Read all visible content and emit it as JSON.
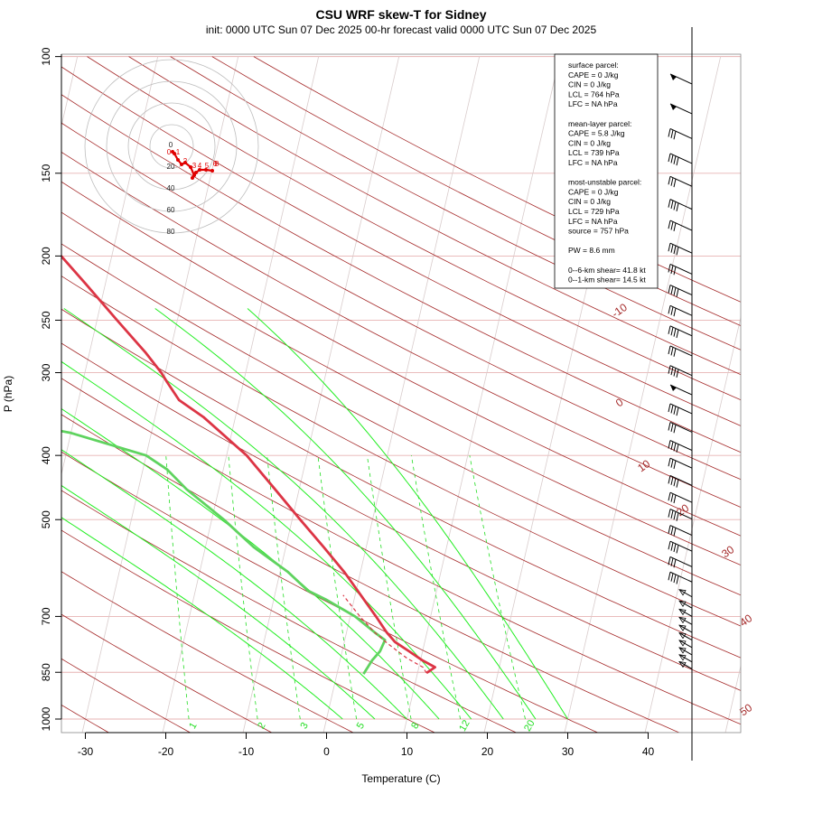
{
  "title": "CSU WRF skew-T for Sidney",
  "subtitle": "init: 0000 UTC Sun 07 Dec 2025    00-hr forecast valid 0000 UTC Sun 07 Dec 2025",
  "chart_data": {
    "type": "line",
    "chart_kind": "skew-T log-P",
    "xlabel": "Temperature (C)",
    "ylabel": "P (hPa)",
    "x_ticks": [
      -30,
      -20,
      -10,
      0,
      10,
      20,
      30,
      40
    ],
    "y_ticks": [
      100,
      150,
      200,
      250,
      300,
      400,
      500,
      700,
      850,
      1000
    ],
    "xlim": [
      -33,
      45
    ],
    "ylim": [
      1050,
      100
    ],
    "y_scale": "log",
    "isotherm_labels": [
      "-10",
      "0",
      "10",
      "20",
      "30",
      "40",
      "50"
    ],
    "mixing_ratio_labels": [
      "1",
      "2",
      "3",
      "5",
      "8",
      "12",
      "20"
    ],
    "series": [
      {
        "name": "Temperature",
        "color": "#dc3545",
        "points": [
          [
            852,
            11.1
          ],
          [
            835,
            12.0
          ],
          [
            815,
            10.2
          ],
          [
            790,
            8.3
          ],
          [
            765,
            6.3
          ],
          [
            740,
            5.0
          ],
          [
            700,
            3.2
          ],
          [
            650,
            0.7
          ],
          [
            600,
            -2.0
          ],
          [
            550,
            -5.3
          ],
          [
            500,
            -9.0
          ],
          [
            450,
            -13.0
          ],
          [
            400,
            -17.5
          ],
          [
            350,
            -24.0
          ],
          [
            330,
            -27.5
          ],
          [
            310,
            -29.5
          ],
          [
            300,
            -30.5
          ],
          [
            280,
            -33.0
          ],
          [
            250,
            -37.5
          ],
          [
            220,
            -42.5
          ],
          [
            200,
            -46.3
          ],
          [
            180,
            -50.5
          ],
          [
            150,
            -57.0
          ],
          [
            130,
            -59.5
          ],
          [
            110,
            -61.8
          ]
        ]
      },
      {
        "name": "Dewpoint",
        "color": "#5fd35f",
        "points": [
          [
            855,
            3.3
          ],
          [
            815,
            4.0
          ],
          [
            790,
            4.7
          ],
          [
            760,
            5.0
          ],
          [
            740,
            3.5
          ],
          [
            700,
            0.6
          ],
          [
            660,
            -3.5
          ],
          [
            640,
            -6.0
          ],
          [
            600,
            -9.0
          ],
          [
            550,
            -14.0
          ],
          [
            500,
            -18.5
          ],
          [
            450,
            -24.0
          ],
          [
            420,
            -27.0
          ],
          [
            400,
            -30.0
          ],
          [
            370,
            -40.0
          ],
          [
            355,
            -48.0
          ],
          [
            330,
            -54.0
          ],
          [
            300,
            -61.0
          ],
          [
            280,
            -65.0
          ],
          [
            250,
            -70.5
          ],
          [
            220,
            -73.0
          ],
          [
            200,
            -74.5
          ],
          [
            180,
            -77.0
          ]
        ]
      },
      {
        "name": "Parcel",
        "color": "#dc3545",
        "style": "dashed",
        "points": [
          [
            852,
            11.1
          ],
          [
            835,
            10.5
          ],
          [
            810,
            8.3
          ],
          [
            790,
            6.9
          ],
          [
            770,
            5.5
          ],
          [
            764,
            5.1
          ],
          [
            740,
            3.5
          ],
          [
            700,
            1.2
          ],
          [
            650,
            -1.5
          ]
        ]
      }
    ],
    "wind_barbs": {
      "pressures": [
        110,
        122,
        133,
        145,
        157,
        170,
        183,
        198,
        213,
        229,
        246,
        264,
        283,
        303,
        324,
        346,
        369,
        393,
        418,
        444,
        471,
        499,
        528,
        558,
        589,
        621,
        654,
        680,
        700,
        720,
        740,
        760,
        780,
        800,
        820,
        840
      ]
    },
    "hodograph": {
      "rings": [
        "0",
        "20",
        "40",
        "60",
        "80"
      ],
      "height_labels": [
        "0",
        "1",
        "2",
        "3",
        "4",
        "5",
        "6",
        "8"
      ]
    }
  },
  "stats_box": {
    "surface_header": "surface parcel:",
    "surface_lines": [
      "CAPE = 0 J/kg",
      "CIN = 0 J/kg",
      "LCL = 764 hPa",
      "LFC = NA hPa"
    ],
    "mean_layer_header": "mean-layer parcel:",
    "mean_layer_lines": [
      "CAPE = 5.8 J/kg",
      "CIN = 0 J/kg",
      "LCL = 739 hPa",
      "LFC = NA hPa"
    ],
    "most_unstable_header": "most-unstable parcel:",
    "most_unstable_lines": [
      "CAPE = 0 J/kg",
      "CIN = 0 J/kg",
      "LCL = 729 hPa",
      "LFC = NA hPa",
      "source = 757 hPa"
    ],
    "pw_line": "PW =  8.6 mm",
    "shear_lines": [
      "0--6-km shear= 41.8 kt",
      "0--1-km shear= 14.5 kt"
    ]
  }
}
